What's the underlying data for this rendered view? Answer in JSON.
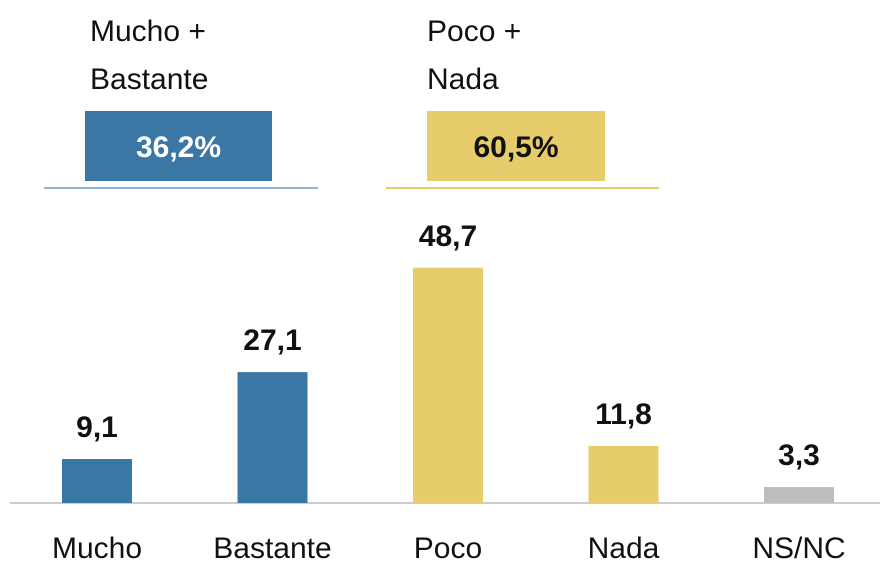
{
  "chart_data": {
    "type": "bar",
    "categories": [
      "Mucho",
      "Bastante",
      "Poco",
      "Nada",
      "NS/NC"
    ],
    "values": [
      9.1,
      27.1,
      48.7,
      11.8,
      3.3
    ],
    "value_labels": [
      "9,1",
      "27,1",
      "48,7",
      "11,8",
      "3,3"
    ],
    "colors": [
      "#3a77a5",
      "#3a77a5",
      "#e6cc6a",
      "#e6cc6a",
      "#bdbdbd"
    ],
    "groups": [
      {
        "label": [
          "Mucho +",
          "Bastante"
        ],
        "value": 36.2,
        "value_label": "36,2%",
        "color": "#3a77a5"
      },
      {
        "label": [
          "Poco +",
          "Nada"
        ],
        "value": 60.5,
        "value_label": "60,5%",
        "color": "#e6cc6a"
      }
    ]
  }
}
